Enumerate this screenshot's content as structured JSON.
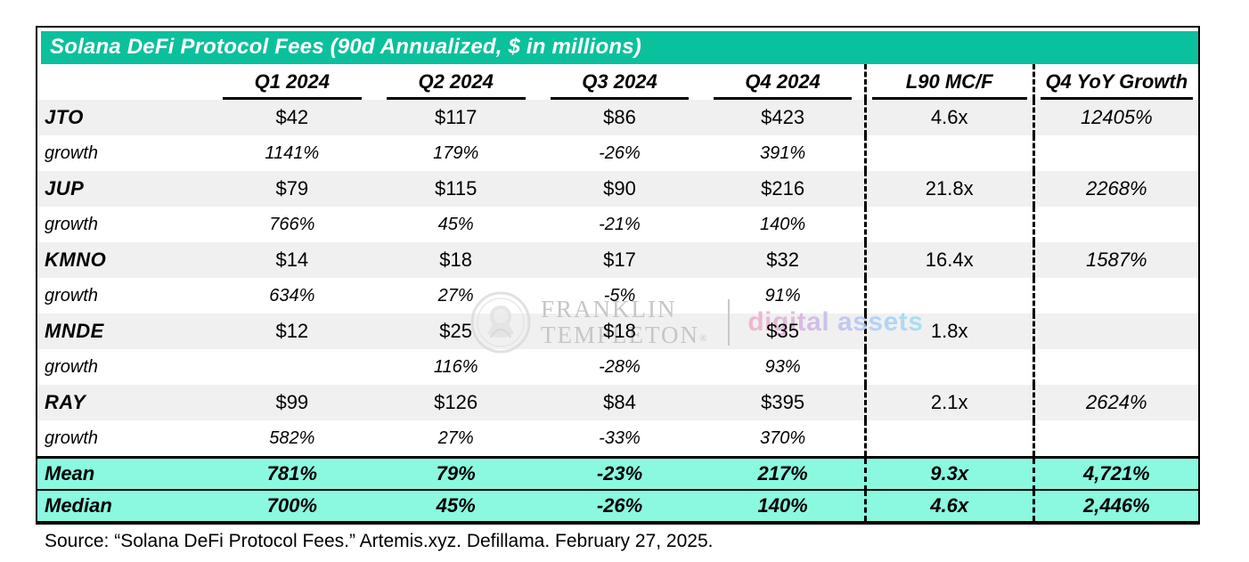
{
  "chart_data": {
    "type": "table",
    "title": "Solana DeFi Protocol Fees (90d Annualized, $ in millions)",
    "columns": [
      "",
      "Q1 2024",
      "Q2 2024",
      "Q3 2024",
      "Q4 2024",
      "L90 MC/F",
      "Q4 YoY Growth"
    ],
    "rows": [
      {
        "style": "protocol",
        "cells": [
          "JTO",
          "$42",
          "$117",
          "$86",
          "$423",
          "4.6x",
          "12405%"
        ]
      },
      {
        "style": "growth",
        "cells": [
          "growth",
          "1141%",
          "179%",
          "-26%",
          "391%",
          "",
          ""
        ]
      },
      {
        "style": "protocol",
        "cells": [
          "JUP",
          "$79",
          "$115",
          "$90",
          "$216",
          "21.8x",
          "2268%"
        ]
      },
      {
        "style": "growth",
        "cells": [
          "growth",
          "766%",
          "45%",
          "-21%",
          "140%",
          "",
          ""
        ]
      },
      {
        "style": "protocol",
        "cells": [
          "KMNO",
          "$14",
          "$18",
          "$17",
          "$32",
          "16.4x",
          "1587%"
        ]
      },
      {
        "style": "growth",
        "cells": [
          "growth",
          "634%",
          "27%",
          "-5%",
          "91%",
          "",
          ""
        ]
      },
      {
        "style": "protocol",
        "cells": [
          "MNDE",
          "$12",
          "$25",
          "$18",
          "$35",
          "1.8x",
          ""
        ]
      },
      {
        "style": "growth",
        "cells": [
          "growth",
          "",
          "116%",
          "-28%",
          "93%",
          "",
          ""
        ]
      },
      {
        "style": "protocol",
        "cells": [
          "RAY",
          "$99",
          "$126",
          "$84",
          "$395",
          "2.1x",
          "2624%"
        ]
      },
      {
        "style": "growth",
        "cells": [
          "growth",
          "582%",
          "27%",
          "-33%",
          "370%",
          "",
          ""
        ]
      },
      {
        "style": "summary",
        "cells": [
          "Mean",
          "781%",
          "79%",
          "-23%",
          "217%",
          "9.3x",
          "4,721%"
        ]
      },
      {
        "style": "summary",
        "cells": [
          "Median",
          "700%",
          "45%",
          "-26%",
          "140%",
          "4.6x",
          "2,446%"
        ]
      }
    ],
    "layout_hints": {
      "dashed_separators_before_columns": [
        "L90 MC/F",
        "Q4 YoY Growth"
      ],
      "shaded_rows": "protocol rows light gray, summary rows teal"
    }
  },
  "watermark": {
    "brand_line1": "FRANKLIN",
    "brand_line2": "TEMPLETON",
    "registered": "®",
    "product": "digital assets"
  },
  "source": "Source: “Solana DeFi Protocol Fees.” Artemis.xyz. Defillama. February 27, 2025.",
  "colors": {
    "title_bar": "#0bc09d",
    "summary_row": "#8bf8e0",
    "protocol_row": "#f0f0f0",
    "border": "#000000",
    "watermark_gray": "#c6c6c6",
    "watermark_gradient": [
      "#f3a8c5",
      "#c9b2e6",
      "#a9c8f4",
      "#97dcf0"
    ]
  }
}
